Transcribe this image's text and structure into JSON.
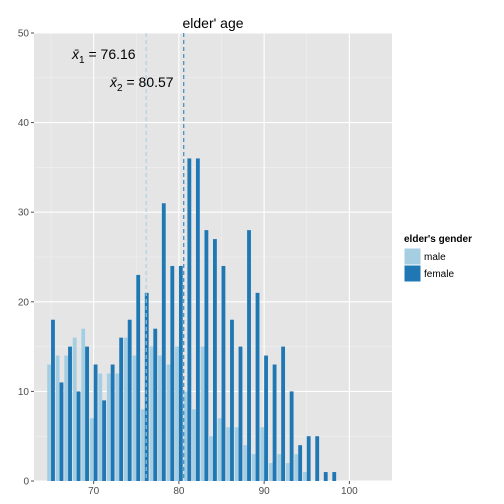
{
  "chart_data": {
    "type": "bar",
    "title": "elder' age",
    "xlabel": "",
    "ylabel": "",
    "xlim": [
      63,
      105
    ],
    "ylim": [
      0,
      50
    ],
    "x_ticks": [
      70,
      80,
      90,
      100
    ],
    "y_ticks": [
      0,
      10,
      20,
      30,
      40,
      50
    ],
    "grid": true,
    "legend": {
      "title": "elder's gender",
      "position": "right"
    },
    "series": [
      {
        "name": "male",
        "color": "#a6cee3",
        "values": [
          {
            "x": 65,
            "y": 13
          },
          {
            "x": 66,
            "y": 14
          },
          {
            "x": 67,
            "y": 14
          },
          {
            "x": 68,
            "y": 16
          },
          {
            "x": 69,
            "y": 17
          },
          {
            "x": 70,
            "y": 7
          },
          {
            "x": 71,
            "y": 12
          },
          {
            "x": 72,
            "y": 12
          },
          {
            "x": 73,
            "y": 12
          },
          {
            "x": 74,
            "y": 16
          },
          {
            "x": 75,
            "y": 14
          },
          {
            "x": 76,
            "y": 8
          },
          {
            "x": 77,
            "y": 15
          },
          {
            "x": 78,
            "y": 14
          },
          {
            "x": 79,
            "y": 13
          },
          {
            "x": 80,
            "y": 15
          },
          {
            "x": 81,
            "y": 10
          },
          {
            "x": 82,
            "y": 8
          },
          {
            "x": 83,
            "y": 15
          },
          {
            "x": 84,
            "y": 5
          },
          {
            "x": 85,
            "y": 7
          },
          {
            "x": 86,
            "y": 6
          },
          {
            "x": 87,
            "y": 6
          },
          {
            "x": 88,
            "y": 4
          },
          {
            "x": 89,
            "y": 3
          },
          {
            "x": 90,
            "y": 6
          },
          {
            "x": 91,
            "y": 2
          },
          {
            "x": 92,
            "y": 3
          },
          {
            "x": 93,
            "y": 2
          },
          {
            "x": 94,
            "y": 3
          },
          {
            "x": 95,
            "y": 1
          },
          {
            "x": 96,
            "y": 0
          },
          {
            "x": 97,
            "y": 0
          },
          {
            "x": 98,
            "y": 0
          }
        ]
      },
      {
        "name": "female",
        "color": "#1f78b4",
        "values": [
          {
            "x": 65,
            "y": 18
          },
          {
            "x": 66,
            "y": 11
          },
          {
            "x": 67,
            "y": 15
          },
          {
            "x": 68,
            "y": 10
          },
          {
            "x": 69,
            "y": 15
          },
          {
            "x": 70,
            "y": 13
          },
          {
            "x": 71,
            "y": 9
          },
          {
            "x": 72,
            "y": 13
          },
          {
            "x": 73,
            "y": 16
          },
          {
            "x": 74,
            "y": 18
          },
          {
            "x": 75,
            "y": 23
          },
          {
            "x": 76,
            "y": 21
          },
          {
            "x": 77,
            "y": 17
          },
          {
            "x": 78,
            "y": 31
          },
          {
            "x": 79,
            "y": 24
          },
          {
            "x": 80,
            "y": 24
          },
          {
            "x": 81,
            "y": 36
          },
          {
            "x": 82,
            "y": 36
          },
          {
            "x": 83,
            "y": 28
          },
          {
            "x": 84,
            "y": 27
          },
          {
            "x": 85,
            "y": 24
          },
          {
            "x": 86,
            "y": 18
          },
          {
            "x": 87,
            "y": 15
          },
          {
            "x": 88,
            "y": 28
          },
          {
            "x": 89,
            "y": 21
          },
          {
            "x": 90,
            "y": 14
          },
          {
            "x": 91,
            "y": 13
          },
          {
            "x": 92,
            "y": 15
          },
          {
            "x": 93,
            "y": 10
          },
          {
            "x": 94,
            "y": 4
          },
          {
            "x": 95,
            "y": 5
          },
          {
            "x": 96,
            "y": 5
          },
          {
            "x": 97,
            "y": 1
          },
          {
            "x": 98,
            "y": 1
          }
        ]
      }
    ],
    "reference_lines": [
      {
        "x": 76.16,
        "color": "#a6cee3",
        "style": "dashed",
        "label": "76.16"
      },
      {
        "x": 80.57,
        "color": "#1f78b4",
        "style": "dashed",
        "label": "80.57"
      }
    ]
  },
  "annotations": [
    {
      "symbol": "x̄",
      "subscript": "1",
      "operator": " = ",
      "value": "76.16"
    },
    {
      "symbol": "x̄",
      "subscript": "2",
      "operator": " = ",
      "value": "80.57"
    }
  ]
}
